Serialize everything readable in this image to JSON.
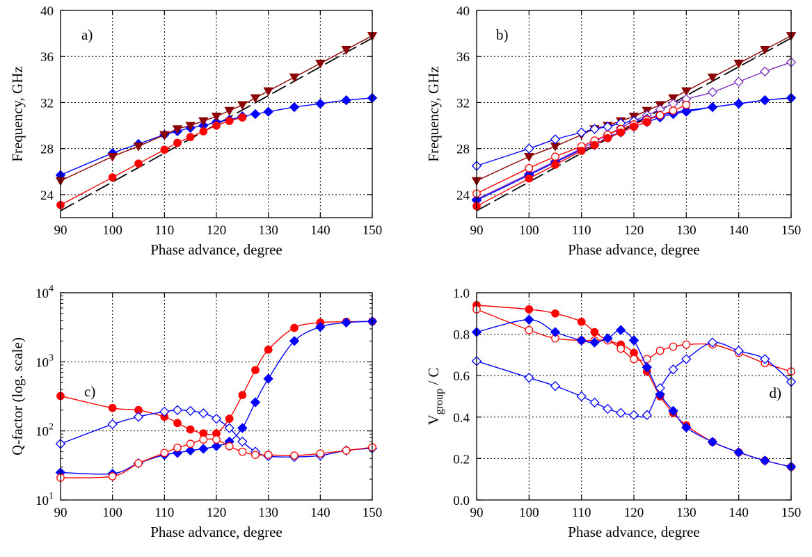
{
  "chart_data": [
    {
      "panel": "a)",
      "type": "line",
      "xlabel": "Phase advance, degree",
      "ylabel": "Frequency, GHz",
      "xlim": [
        90,
        150
      ],
      "ylim": [
        22,
        40
      ],
      "xticks": [
        90,
        100,
        110,
        120,
        130,
        140,
        150
      ],
      "yticks": [
        24,
        28,
        32,
        36,
        40
      ],
      "scale": "linear",
      "grid": true,
      "series": [
        {
          "color": "#000000",
          "marker": "none",
          "dashed": true,
          "x": [
            90,
            150
          ],
          "y": [
            22.6,
            37.6
          ]
        },
        {
          "color": "#0000ff",
          "marker": "diamond",
          "filled": true,
          "x": [
            90,
            100,
            105,
            110,
            112.5,
            115,
            117.5,
            120,
            122.5,
            125,
            127.5,
            130,
            135,
            140,
            145,
            150
          ],
          "y": [
            25.7,
            27.6,
            28.4,
            29.2,
            29.5,
            29.8,
            30.0,
            30.3,
            30.5,
            30.8,
            31.0,
            31.2,
            31.6,
            31.9,
            32.2,
            32.4
          ]
        },
        {
          "color": "#8b0000",
          "marker": "triangle-down",
          "filled": true,
          "x": [
            90,
            100,
            105,
            110,
            112.5,
            115,
            117.5,
            120,
            122.5,
            125,
            127.5,
            130,
            135,
            140,
            145,
            150
          ],
          "y": [
            25.2,
            27.3,
            28.2,
            29.2,
            29.7,
            30.0,
            30.4,
            30.8,
            31.3,
            31.8,
            32.4,
            33.0,
            34.2,
            35.4,
            36.6,
            37.8
          ]
        },
        {
          "color": "#ff0000",
          "marker": "circle",
          "filled": true,
          "x": [
            90,
            100,
            105,
            110,
            112.5,
            115,
            117.5,
            120,
            122.5,
            125
          ],
          "y": [
            23.1,
            25.5,
            26.7,
            27.9,
            28.5,
            29.0,
            29.5,
            30.0,
            30.4,
            30.7
          ]
        }
      ]
    },
    {
      "panel": "b)",
      "type": "line",
      "xlabel": "Phase advance, degree",
      "ylabel": "Frequency, GHz",
      "xlim": [
        90,
        150
      ],
      "ylim": [
        22,
        40
      ],
      "xticks": [
        90,
        100,
        110,
        120,
        130,
        140,
        150
      ],
      "yticks": [
        24,
        28,
        32,
        36,
        40
      ],
      "scale": "linear",
      "grid": true,
      "series": [
        {
          "color": "#000000",
          "marker": "none",
          "dashed": true,
          "x": [
            90,
            150
          ],
          "y": [
            22.6,
            37.6
          ]
        },
        {
          "color": "#8b0000",
          "marker": "triangle-down",
          "filled": true,
          "x": [
            90,
            100,
            105,
            110,
            112.5,
            115,
            117.5,
            120,
            122.5,
            125,
            127.5,
            130,
            135,
            140,
            145,
            150
          ],
          "y": [
            25.2,
            27.3,
            28.2,
            29.2,
            29.7,
            30.0,
            30.4,
            30.8,
            31.3,
            31.8,
            32.4,
            33.0,
            34.2,
            35.4,
            36.6,
            37.8
          ]
        },
        {
          "color": "#7b2fbe",
          "marker": "diamond",
          "filled": false,
          "x": [
            90,
            100,
            105,
            110,
            112.5,
            115,
            117.5,
            120,
            122.5,
            125,
            127.5,
            130,
            135,
            140,
            145,
            150
          ],
          "y": [
            23.6,
            25.8,
            26.9,
            28.0,
            28.6,
            29.2,
            29.8,
            30.4,
            30.9,
            31.4,
            31.9,
            32.3,
            32.9,
            33.8,
            34.7,
            35.5
          ]
        },
        {
          "color": "#0000ff",
          "marker": "diamond",
          "filled": false,
          "x": [
            90,
            100,
            105,
            110,
            112.5,
            115,
            117.5,
            120,
            122.5,
            125,
            127.5,
            130,
            135,
            140,
            145,
            150
          ],
          "y": [
            26.5,
            28.0,
            28.8,
            29.4,
            29.7,
            29.9,
            30.2,
            30.4,
            30.6,
            30.9,
            31.1,
            31.3,
            31.6,
            31.9,
            32.2,
            32.4
          ]
        },
        {
          "color": "#0000ff",
          "marker": "diamond",
          "filled": true,
          "x": [
            90,
            100,
            105,
            110,
            112.5,
            115,
            117.5,
            120,
            122.5,
            125,
            127.5,
            130,
            135,
            140,
            145,
            150
          ],
          "y": [
            23.5,
            25.7,
            26.8,
            27.9,
            28.3,
            29.0,
            29.4,
            29.9,
            30.3,
            30.7,
            31.0,
            31.2,
            31.6,
            31.9,
            32.2,
            32.4
          ]
        },
        {
          "color": "#ff0000",
          "marker": "circle",
          "filled": false,
          "x": [
            90,
            100,
            105,
            110,
            112.5,
            115,
            117.5,
            120,
            122.5,
            125,
            127.5,
            130
          ],
          "y": [
            24.1,
            26.3,
            27.3,
            28.2,
            28.7,
            29.2,
            29.7,
            30.1,
            30.5,
            30.9,
            31.3,
            31.8
          ]
        },
        {
          "color": "#ff0000",
          "marker": "circle",
          "filled": true,
          "x": [
            90,
            100,
            105,
            110,
            112.5,
            115,
            117.5,
            120,
            122.5
          ],
          "y": [
            23.0,
            25.4,
            26.6,
            27.8,
            28.3,
            28.9,
            29.4,
            29.9,
            30.3
          ]
        }
      ]
    },
    {
      "panel": "c)",
      "type": "line",
      "xlabel": "Phase advance, degree",
      "ylabel": "Q-factor  (log. scale)",
      "xlim": [
        90,
        150
      ],
      "ylim": [
        10,
        10000
      ],
      "xticks": [
        90,
        100,
        110,
        120,
        130,
        140,
        150
      ],
      "yticks": [
        10,
        100,
        1000,
        10000
      ],
      "ytick_exponents": [
        "1",
        "2",
        "3",
        "4"
      ],
      "scale": "log",
      "grid": true,
      "series": [
        {
          "color": "#ff0000",
          "marker": "circle",
          "filled": true,
          "x": [
            90,
            100,
            105,
            110,
            112.5,
            115,
            117.5,
            120,
            122.5,
            125,
            127.5,
            130,
            135,
            140,
            145,
            150
          ],
          "y": [
            320,
            215,
            200,
            160,
            130,
            105,
            92,
            92,
            150,
            330,
            760,
            1500,
            3100,
            3700,
            3800,
            3850
          ]
        },
        {
          "color": "#0000ff",
          "marker": "diamond",
          "filled": true,
          "x": [
            90,
            100,
            105,
            110,
            112.5,
            115,
            117.5,
            120,
            122.5,
            125,
            127.5,
            130,
            135,
            140,
            145,
            150
          ],
          "y": [
            25,
            24,
            34,
            45,
            48,
            52,
            55,
            60,
            70,
            110,
            260,
            570,
            2000,
            3200,
            3700,
            3850
          ]
        },
        {
          "color": "#0000ff",
          "marker": "diamond",
          "filled": false,
          "x": [
            90,
            100,
            105,
            110,
            112.5,
            115,
            117.5,
            120,
            122.5,
            125,
            127.5,
            130,
            135,
            140,
            145,
            150
          ],
          "y": [
            65,
            125,
            160,
            190,
            200,
            195,
            180,
            150,
            110,
            70,
            50,
            43,
            42,
            44,
            52,
            56
          ]
        },
        {
          "color": "#ff0000",
          "marker": "circle",
          "filled": false,
          "x": [
            90,
            100,
            105,
            110,
            112.5,
            115,
            117.5,
            120,
            122.5,
            125,
            127.5,
            130,
            135,
            140,
            145,
            150
          ],
          "y": [
            21,
            22,
            34,
            48,
            57,
            65,
            75,
            75,
            60,
            50,
            45,
            45,
            44,
            47,
            52,
            58
          ]
        }
      ]
    },
    {
      "panel": "d)",
      "type": "line",
      "xlabel": "Phase advance, degree",
      "ylabel": "V",
      "ylabel_subscript": "group",
      "ylabel_suffix": " / C",
      "xlim": [
        90,
        150
      ],
      "ylim": [
        0,
        1
      ],
      "xticks": [
        90,
        100,
        110,
        120,
        130,
        140,
        150
      ],
      "yticks": [
        0.0,
        0.2,
        0.4,
        0.6,
        0.8,
        1.0
      ],
      "yticklabels": [
        "0.0",
        "0.2",
        "0.4",
        "0.6",
        "0.8",
        "1.0"
      ],
      "scale": "linear",
      "grid": true,
      "series": [
        {
          "color": "#ff0000",
          "marker": "circle",
          "filled": true,
          "x": [
            90,
            100,
            105,
            110,
            112.5,
            115,
            117.5,
            120,
            122.5,
            125,
            127.5,
            130,
            135,
            140,
            145,
            150
          ],
          "y": [
            0.94,
            0.92,
            0.9,
            0.86,
            0.81,
            0.77,
            0.75,
            0.71,
            0.62,
            0.5,
            0.42,
            0.36,
            0.28,
            0.23,
            0.19,
            0.16
          ]
        },
        {
          "color": "#ff0000",
          "marker": "circle",
          "filled": false,
          "x": [
            90,
            100,
            105,
            110,
            112.5,
            115,
            117.5,
            120,
            122.5,
            125,
            127.5,
            130,
            135,
            140,
            145,
            150
          ],
          "y": [
            0.92,
            0.82,
            0.78,
            0.77,
            0.77,
            0.77,
            0.73,
            0.68,
            0.68,
            0.72,
            0.74,
            0.75,
            0.75,
            0.71,
            0.66,
            0.62
          ]
        },
        {
          "color": "#0000ff",
          "marker": "diamond",
          "filled": true,
          "x": [
            90,
            100,
            105,
            110,
            112.5,
            115,
            117.5,
            120,
            122.5,
            125,
            127.5,
            130,
            135,
            140,
            145,
            150
          ],
          "y": [
            0.81,
            0.87,
            0.81,
            0.77,
            0.76,
            0.78,
            0.82,
            0.77,
            0.64,
            0.51,
            0.43,
            0.35,
            0.28,
            0.23,
            0.19,
            0.16
          ]
        },
        {
          "color": "#0000ff",
          "marker": "diamond",
          "filled": false,
          "x": [
            90,
            100,
            105,
            110,
            112.5,
            115,
            117.5,
            120,
            122.5,
            125,
            127.5,
            130,
            135,
            140,
            145,
            150
          ],
          "y": [
            0.67,
            0.59,
            0.55,
            0.5,
            0.47,
            0.44,
            0.42,
            0.41,
            0.41,
            0.54,
            0.63,
            0.68,
            0.76,
            0.72,
            0.68,
            0.57
          ]
        }
      ]
    }
  ]
}
